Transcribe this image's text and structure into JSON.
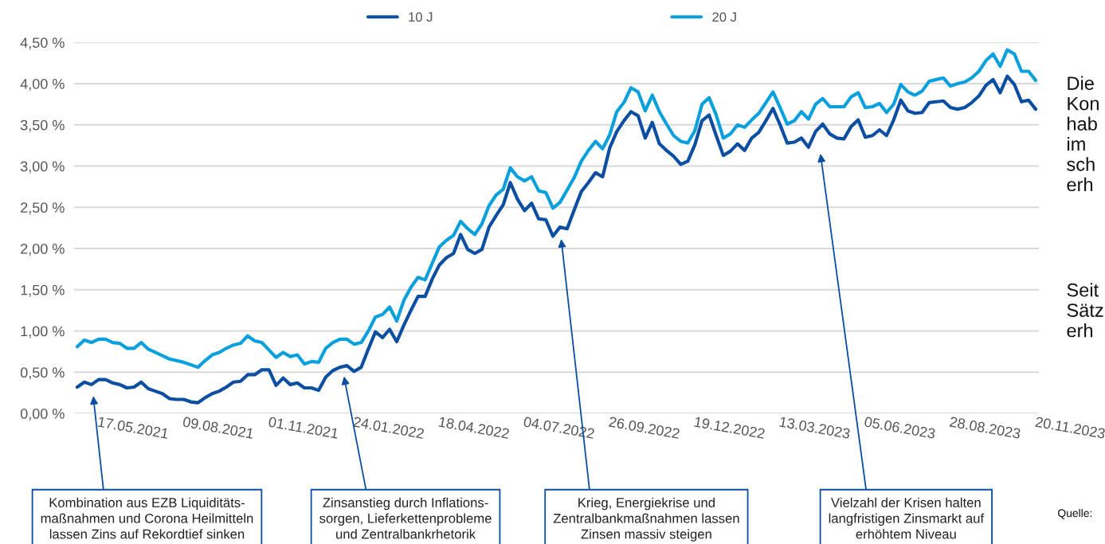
{
  "chart_data": {
    "type": "line",
    "categories": [
      null,
      null,
      null,
      null,
      null,
      null,
      null,
      null,
      "17.05.2021",
      null,
      null,
      null,
      null,
      null,
      null,
      null,
      null,
      null,
      null,
      null,
      "09.08.2021",
      null,
      null,
      null,
      null,
      null,
      null,
      null,
      null,
      null,
      null,
      null,
      "01.11.2021",
      null,
      null,
      null,
      null,
      null,
      null,
      null,
      null,
      null,
      null,
      null,
      "24.01.2022",
      null,
      null,
      null,
      null,
      null,
      null,
      null,
      null,
      null,
      null,
      null,
      "18.04.2022",
      null,
      null,
      null,
      null,
      null,
      null,
      null,
      null,
      null,
      null,
      null,
      "04.07.2022",
      null,
      null,
      null,
      null,
      null,
      null,
      null,
      null,
      null,
      null,
      null,
      "26.09.2022",
      null,
      null,
      null,
      null,
      null,
      null,
      null,
      null,
      null,
      null,
      null,
      "19.12.2022",
      null,
      null,
      null,
      null,
      null,
      null,
      null,
      null,
      null,
      null,
      null,
      "13.03.2023",
      null,
      null,
      null,
      null,
      null,
      null,
      null,
      null,
      null,
      null,
      null,
      "05.06.2023",
      null,
      null,
      null,
      null,
      null,
      null,
      null,
      null,
      null,
      null,
      null,
      "28.08.2023",
      null,
      null,
      null,
      null,
      null,
      null,
      null,
      null,
      null,
      null,
      null,
      "20.11.2023"
    ],
    "series": [
      {
        "name": "10 J",
        "color": "#0b4ea2",
        "values": [
          0.32,
          0.38,
          0.35,
          0.41,
          0.41,
          0.37,
          0.35,
          0.31,
          0.32,
          0.38,
          0.3,
          0.27,
          0.24,
          0.18,
          0.17,
          0.17,
          0.14,
          0.13,
          0.19,
          0.24,
          0.27,
          0.32,
          0.38,
          0.39,
          0.47,
          0.47,
          0.53,
          0.53,
          0.34,
          0.43,
          0.35,
          0.37,
          0.31,
          0.31,
          0.28,
          0.44,
          0.52,
          0.56,
          0.58,
          0.51,
          0.56,
          0.78,
          0.99,
          0.92,
          1.02,
          0.87,
          1.07,
          1.25,
          1.42,
          1.42,
          1.63,
          1.8,
          1.89,
          1.94,
          2.17,
          1.99,
          1.94,
          1.99,
          2.26,
          2.4,
          2.53,
          2.8,
          2.6,
          2.46,
          2.55,
          2.36,
          2.35,
          2.15,
          2.26,
          2.24,
          2.47,
          2.69,
          2.8,
          2.92,
          2.87,
          3.22,
          3.42,
          3.55,
          3.66,
          3.61,
          3.34,
          3.53,
          3.27,
          3.19,
          3.12,
          3.02,
          3.06,
          3.26,
          3.55,
          3.62,
          3.37,
          3.13,
          3.18,
          3.27,
          3.19,
          3.34,
          3.41,
          3.55,
          3.7,
          3.5,
          3.28,
          3.29,
          3.34,
          3.23,
          3.42,
          3.51,
          3.39,
          3.34,
          3.33,
          3.48,
          3.56,
          3.35,
          3.37,
          3.44,
          3.37,
          3.56,
          3.8,
          3.67,
          3.64,
          3.65,
          3.77,
          3.78,
          3.79,
          3.71,
          3.69,
          3.71,
          3.77,
          3.85,
          3.98,
          4.05,
          3.89,
          4.09,
          3.99,
          3.78,
          3.8,
          3.69,
          null,
          null,
          null,
          null,
          null
        ]
      },
      {
        "name": "20 J",
        "color": "#0aa0de",
        "values": [
          0.81,
          0.89,
          0.86,
          0.9,
          0.9,
          0.86,
          0.85,
          0.79,
          0.79,
          0.86,
          0.78,
          0.74,
          0.7,
          0.66,
          0.64,
          0.62,
          0.59,
          0.56,
          0.64,
          0.71,
          0.74,
          0.79,
          0.83,
          0.85,
          0.94,
          0.88,
          0.86,
          0.77,
          0.68,
          0.74,
          0.69,
          0.71,
          0.6,
          0.63,
          0.62,
          0.79,
          0.86,
          0.9,
          0.9,
          0.84,
          0.86,
          1.0,
          1.17,
          1.2,
          1.29,
          1.12,
          1.37,
          1.53,
          1.65,
          1.62,
          1.82,
          2.02,
          2.1,
          2.16,
          2.33,
          2.24,
          2.17,
          2.3,
          2.52,
          2.65,
          2.72,
          2.98,
          2.87,
          2.82,
          2.87,
          2.7,
          2.68,
          2.49,
          2.56,
          2.71,
          2.86,
          3.06,
          3.19,
          3.3,
          3.21,
          3.38,
          3.66,
          3.77,
          3.95,
          3.9,
          3.67,
          3.86,
          3.66,
          3.51,
          3.37,
          3.3,
          3.28,
          3.43,
          3.75,
          3.83,
          3.62,
          3.34,
          3.39,
          3.5,
          3.47,
          3.56,
          3.64,
          3.77,
          3.9,
          3.71,
          3.51,
          3.55,
          3.66,
          3.57,
          3.75,
          3.82,
          3.72,
          3.72,
          3.72,
          3.84,
          3.89,
          3.71,
          3.72,
          3.76,
          3.65,
          3.75,
          3.99,
          3.9,
          3.86,
          3.91,
          4.03,
          4.05,
          4.07,
          3.97,
          4.0,
          4.02,
          4.07,
          4.15,
          4.28,
          4.36,
          4.21,
          4.41,
          4.36,
          4.15,
          4.15,
          4.04,
          null,
          null,
          null,
          null,
          null
        ]
      }
    ],
    "ylim": [
      0,
      4.5
    ],
    "yticks": [
      {
        "value": 0,
        "label": "0,00 %"
      },
      {
        "value": 0.5,
        "label": "0,50 %"
      },
      {
        "value": 1.0,
        "label": "1,00 %"
      },
      {
        "value": 1.5,
        "label": "1,50 %"
      },
      {
        "value": 2.0,
        "label": "2,00 %"
      },
      {
        "value": 2.5,
        "label": "2,50 %"
      },
      {
        "value": 3.0,
        "label": "3,00 %"
      },
      {
        "value": 3.5,
        "label": "3,50 %"
      },
      {
        "value": 4.0,
        "label": "4,00 %"
      },
      {
        "value": 4.5,
        "label": "4,50 %"
      }
    ],
    "grid": "y",
    "legend": "top",
    "marker": "none",
    "line_style": "solid",
    "annotations": [
      "Kombination aus EZB Liquiditäts-\nmaßnahmen und Corona Heilmitteln\nlassen Zins auf Rekordtief sinken",
      "Zinsanstieg durch Inflations-\nsorgen, Lieferkettenprobleme\nund Zentralbankrhetorik",
      "Krieg, Energiekrise und\nZentralbankmaßnahmen lassen\nZinsen massiv steigen",
      "Vielzahl der Krisen halten\nlangfristigen Zinsmarkt auf\nerhöhtem Niveau",
      "Die\nKon\nhab\nim\nsch\nerh",
      "Seit\nSätz\nerh",
      "Quelle:"
    ]
  }
}
